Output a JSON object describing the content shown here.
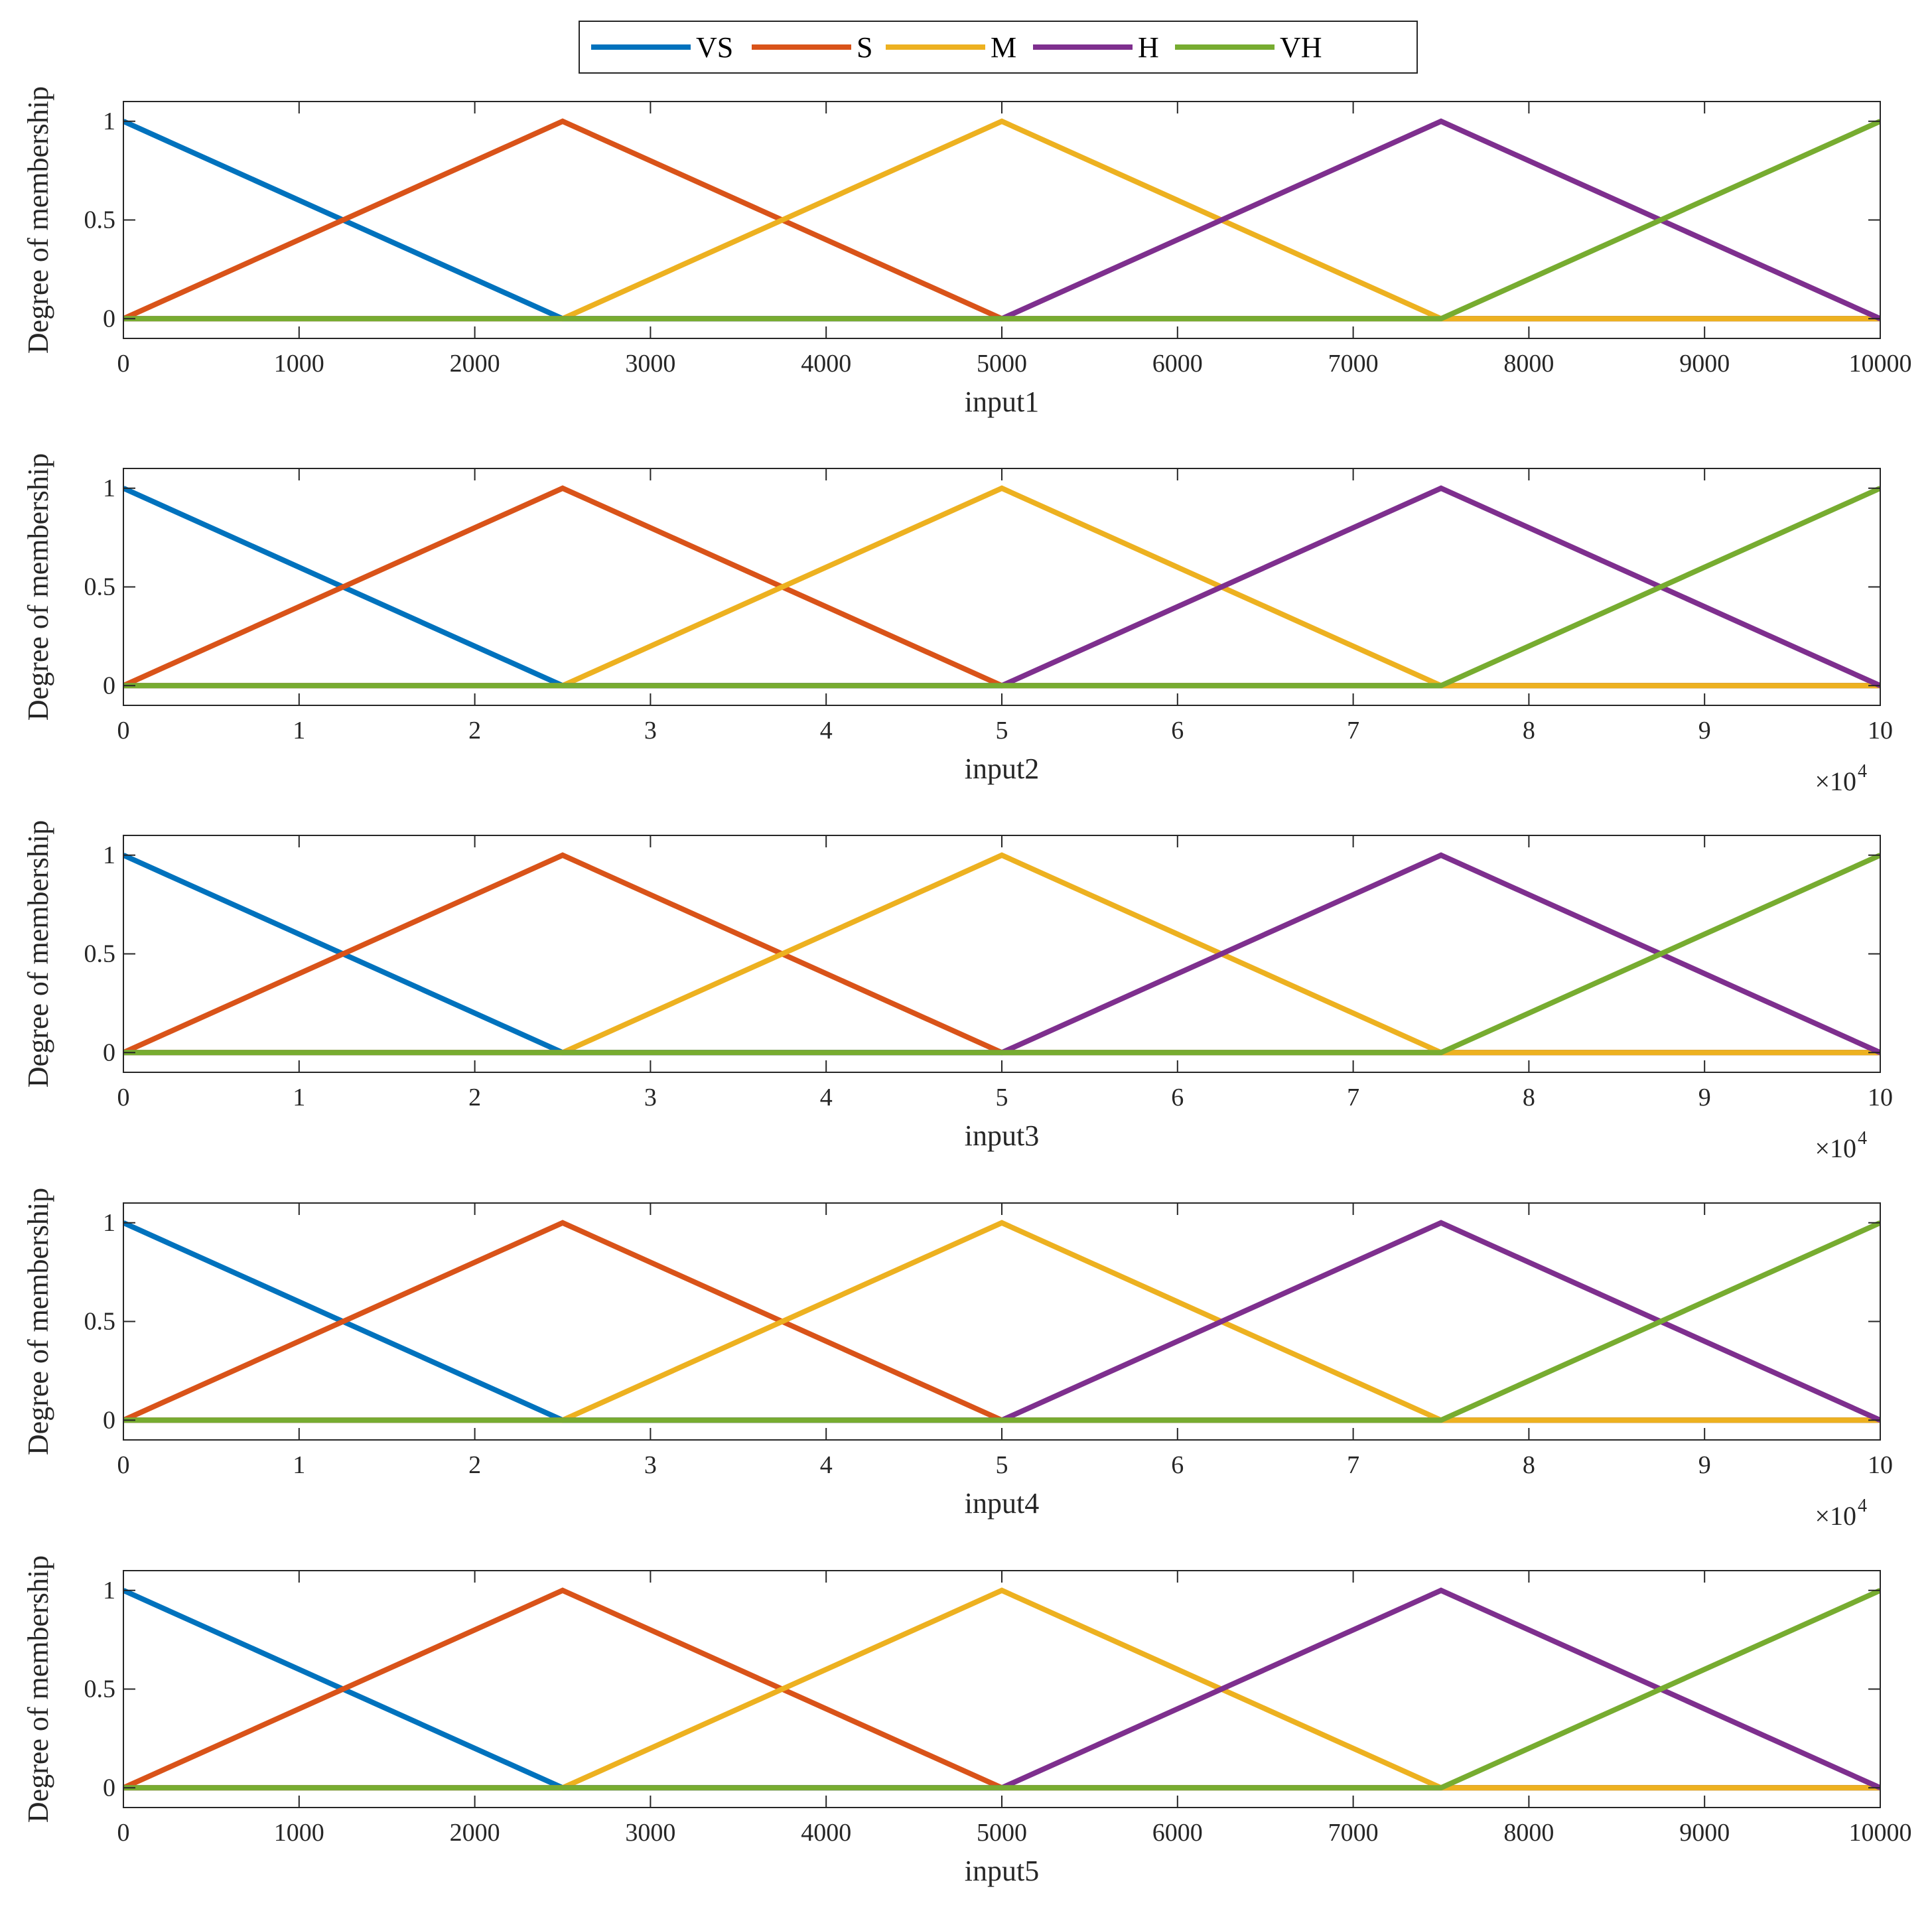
{
  "legend": [
    {
      "label": "VS",
      "color": "#0072BD"
    },
    {
      "label": "S",
      "color": "#D95319"
    },
    {
      "label": "M",
      "color": "#EDB120"
    },
    {
      "label": "H",
      "color": "#7E2F8E"
    },
    {
      "label": "VH",
      "color": "#77AC30"
    }
  ],
  "chart_data": [
    {
      "type": "line",
      "title": "",
      "xlabel": "input1",
      "ylabel": "Degree of membership",
      "xlim": [
        0,
        10000
      ],
      "ylim": [
        -0.1,
        1.1
      ],
      "xticks": [
        0,
        1000,
        2000,
        3000,
        4000,
        5000,
        6000,
        7000,
        8000,
        9000,
        10000
      ],
      "xtick_labels": [
        "0",
        "1000",
        "2000",
        "3000",
        "4000",
        "5000",
        "6000",
        "7000",
        "8000",
        "9000",
        "10000"
      ],
      "yticks": [
        0,
        0.5,
        1
      ],
      "ytick_labels": [
        "0",
        "0.5",
        "1"
      ],
      "multiplier": "",
      "grid": false,
      "series": [
        {
          "name": "VS",
          "x": [
            0,
            2500,
            10000
          ],
          "y": [
            1,
            0,
            0
          ]
        },
        {
          "name": "S",
          "x": [
            0,
            2500,
            5000,
            10000
          ],
          "y": [
            0,
            1,
            0,
            0
          ]
        },
        {
          "name": "M",
          "x": [
            0,
            2500,
            5000,
            7500,
            10000
          ],
          "y": [
            0,
            0,
            1,
            0,
            0
          ]
        },
        {
          "name": "H",
          "x": [
            0,
            5000,
            7500,
            10000
          ],
          "y": [
            0,
            0,
            1,
            0
          ]
        },
        {
          "name": "VH",
          "x": [
            0,
            7500,
            10000
          ],
          "y": [
            0,
            0,
            1
          ]
        }
      ]
    },
    {
      "type": "line",
      "title": "",
      "xlabel": "input2",
      "ylabel": "Degree of membership",
      "xlim": [
        0,
        100000
      ],
      "ylim": [
        -0.1,
        1.1
      ],
      "xticks": [
        0,
        10000,
        20000,
        30000,
        40000,
        50000,
        60000,
        70000,
        80000,
        90000,
        100000
      ],
      "xtick_labels": [
        "0",
        "1",
        "2",
        "3",
        "4",
        "5",
        "6",
        "7",
        "8",
        "9",
        "10"
      ],
      "yticks": [
        0,
        0.5,
        1
      ],
      "ytick_labels": [
        "0",
        "0.5",
        "1"
      ],
      "multiplier": "×10",
      "multiplier_exponent": "4",
      "grid": false,
      "series": [
        {
          "name": "VS",
          "x": [
            0,
            25000,
            100000
          ],
          "y": [
            1,
            0,
            0
          ]
        },
        {
          "name": "S",
          "x": [
            0,
            25000,
            50000,
            100000
          ],
          "y": [
            0,
            1,
            0,
            0
          ]
        },
        {
          "name": "M",
          "x": [
            0,
            25000,
            50000,
            75000,
            100000
          ],
          "y": [
            0,
            0,
            1,
            0,
            0
          ]
        },
        {
          "name": "H",
          "x": [
            0,
            50000,
            75000,
            100000
          ],
          "y": [
            0,
            0,
            1,
            0
          ]
        },
        {
          "name": "VH",
          "x": [
            0,
            75000,
            100000
          ],
          "y": [
            0,
            0,
            1
          ]
        }
      ]
    },
    {
      "type": "line",
      "title": "",
      "xlabel": "input3",
      "ylabel": "Degree of membership",
      "xlim": [
        0,
        100000
      ],
      "ylim": [
        -0.1,
        1.1
      ],
      "xticks": [
        0,
        10000,
        20000,
        30000,
        40000,
        50000,
        60000,
        70000,
        80000,
        90000,
        100000
      ],
      "xtick_labels": [
        "0",
        "1",
        "2",
        "3",
        "4",
        "5",
        "6",
        "7",
        "8",
        "9",
        "10"
      ],
      "yticks": [
        0,
        0.5,
        1
      ],
      "ytick_labels": [
        "0",
        "0.5",
        "1"
      ],
      "multiplier": "×10",
      "multiplier_exponent": "4",
      "grid": false,
      "series": [
        {
          "name": "VS",
          "x": [
            0,
            25000,
            100000
          ],
          "y": [
            1,
            0,
            0
          ]
        },
        {
          "name": "S",
          "x": [
            0,
            25000,
            50000,
            100000
          ],
          "y": [
            0,
            1,
            0,
            0
          ]
        },
        {
          "name": "M",
          "x": [
            0,
            25000,
            50000,
            75000,
            100000
          ],
          "y": [
            0,
            0,
            1,
            0,
            0
          ]
        },
        {
          "name": "H",
          "x": [
            0,
            50000,
            75000,
            100000
          ],
          "y": [
            0,
            0,
            1,
            0
          ]
        },
        {
          "name": "VH",
          "x": [
            0,
            75000,
            100000
          ],
          "y": [
            0,
            0,
            1
          ]
        }
      ]
    },
    {
      "type": "line",
      "title": "",
      "xlabel": "input4",
      "ylabel": "Degree of membership",
      "xlim": [
        0,
        100000
      ],
      "ylim": [
        -0.1,
        1.1
      ],
      "xticks": [
        0,
        10000,
        20000,
        30000,
        40000,
        50000,
        60000,
        70000,
        80000,
        90000,
        100000
      ],
      "xtick_labels": [
        "0",
        "1",
        "2",
        "3",
        "4",
        "5",
        "6",
        "7",
        "8",
        "9",
        "10"
      ],
      "yticks": [
        0,
        0.5,
        1
      ],
      "ytick_labels": [
        "0",
        "0.5",
        "1"
      ],
      "multiplier": "×10",
      "multiplier_exponent": "4",
      "grid": false,
      "series": [
        {
          "name": "VS",
          "x": [
            0,
            25000,
            100000
          ],
          "y": [
            1,
            0,
            0
          ]
        },
        {
          "name": "S",
          "x": [
            0,
            25000,
            50000,
            100000
          ],
          "y": [
            0,
            1,
            0,
            0
          ]
        },
        {
          "name": "M",
          "x": [
            0,
            25000,
            50000,
            75000,
            100000
          ],
          "y": [
            0,
            0,
            1,
            0,
            0
          ]
        },
        {
          "name": "H",
          "x": [
            0,
            50000,
            75000,
            100000
          ],
          "y": [
            0,
            0,
            1,
            0
          ]
        },
        {
          "name": "VH",
          "x": [
            0,
            75000,
            100000
          ],
          "y": [
            0,
            0,
            1
          ]
        }
      ]
    },
    {
      "type": "line",
      "title": "",
      "xlabel": "input5",
      "ylabel": "Degree of membership",
      "xlim": [
        0,
        10000
      ],
      "ylim": [
        -0.1,
        1.1
      ],
      "xticks": [
        0,
        1000,
        2000,
        3000,
        4000,
        5000,
        6000,
        7000,
        8000,
        9000,
        10000
      ],
      "xtick_labels": [
        "0",
        "1000",
        "2000",
        "3000",
        "4000",
        "5000",
        "6000",
        "7000",
        "8000",
        "9000",
        "10000"
      ],
      "yticks": [
        0,
        0.5,
        1
      ],
      "ytick_labels": [
        "0",
        "0.5",
        "1"
      ],
      "multiplier": "",
      "grid": false,
      "series": [
        {
          "name": "VS",
          "x": [
            0,
            2500,
            10000
          ],
          "y": [
            1,
            0,
            0
          ]
        },
        {
          "name": "S",
          "x": [
            0,
            2500,
            5000,
            10000
          ],
          "y": [
            0,
            1,
            0,
            0
          ]
        },
        {
          "name": "M",
          "x": [
            0,
            2500,
            5000,
            7500,
            10000
          ],
          "y": [
            0,
            0,
            1,
            0,
            0
          ]
        },
        {
          "name": "H",
          "x": [
            0,
            5000,
            7500,
            10000
          ],
          "y": [
            0,
            0,
            1,
            0
          ]
        },
        {
          "name": "VH",
          "x": [
            0,
            7500,
            10000
          ],
          "y": [
            0,
            0,
            1
          ]
        }
      ]
    }
  ]
}
